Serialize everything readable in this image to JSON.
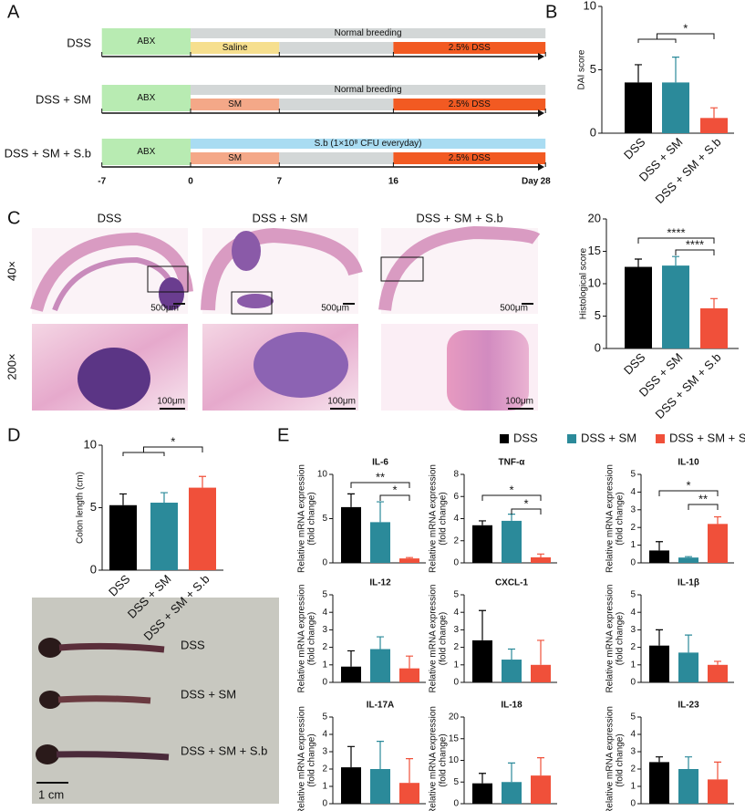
{
  "panel_labels": [
    "A",
    "B",
    "C",
    "D",
    "E"
  ],
  "timeline": {
    "ticks": [
      -7,
      0,
      7,
      16,
      28
    ],
    "unit": "Day",
    "rows": [
      {
        "label": "DSS",
        "segments": [
          {
            "text": "ABX",
            "start": -7,
            "end": 0,
            "lane": "both",
            "color": "#b8ebb2"
          },
          {
            "text": "Normal breeding",
            "start": 0,
            "end": 28,
            "lane": "top",
            "color": "#d3d7d7"
          },
          {
            "text": "Saline",
            "start": 0,
            "end": 7,
            "lane": "bottom",
            "color": "#f6df8e"
          },
          {
            "start": 7,
            "end": 16,
            "lane": "bottom",
            "color": "#d3d7d7"
          },
          {
            "text": "2.5% DSS",
            "start": 16,
            "end": 28,
            "lane": "bottom",
            "color": "#f25a22"
          }
        ]
      },
      {
        "label": "DSS + SM",
        "segments": [
          {
            "text": "ABX",
            "start": -7,
            "end": 0,
            "lane": "both",
            "color": "#b8ebb2"
          },
          {
            "text": "Normal breeding",
            "start": 0,
            "end": 28,
            "lane": "top",
            "color": "#d3d7d7"
          },
          {
            "text": "SM",
            "start": 0,
            "end": 7,
            "lane": "bottom",
            "color": "#f4a888"
          },
          {
            "start": 7,
            "end": 16,
            "lane": "bottom",
            "color": "#d3d7d7"
          },
          {
            "text": "2.5% DSS",
            "start": 16,
            "end": 28,
            "lane": "bottom",
            "color": "#f25a22"
          }
        ]
      },
      {
        "label": "DSS + SM + S.b",
        "segments": [
          {
            "text": "ABX",
            "start": -7,
            "end": 0,
            "lane": "both",
            "color": "#b8ebb2"
          },
          {
            "text": "S.b (1×10⁸ CFU everyday)",
            "start": 0,
            "end": 28,
            "lane": "top",
            "color": "#a9dcf2"
          },
          {
            "text": "SM",
            "start": 0,
            "end": 7,
            "lane": "bottom",
            "color": "#f4a888"
          },
          {
            "start": 7,
            "end": 16,
            "lane": "bottom",
            "color": "#d3d7d7"
          },
          {
            "text": "2.5% DSS",
            "start": 16,
            "end": 28,
            "lane": "bottom",
            "color": "#f25a22"
          }
        ]
      }
    ]
  },
  "histology": {
    "columns": [
      "DSS",
      "DSS + SM",
      "DSS + SM + S.b"
    ],
    "rows": [
      "40×",
      "200×"
    ],
    "scale_bars": [
      "500μm",
      "100μm"
    ]
  },
  "colon_photo": {
    "labels": [
      "DSS",
      "DSS + SM",
      "DSS + SM + S.b"
    ],
    "scale_bar": "1 cm"
  },
  "legend": {
    "names": [
      "DSS",
      "DSS + SM",
      "DSS + SM + S.b"
    ],
    "colors": [
      "#000000",
      "#2b8a9a",
      "#f0503a"
    ]
  },
  "chart_data": [
    {
      "type": "bar",
      "ylabel": "DAI score",
      "categories": [
        "DSS",
        "DSS + SM",
        "DSS + SM + S.b"
      ],
      "values": [
        4.0,
        4.0,
        1.2
      ],
      "errors": [
        1.4,
        2.0,
        0.8
      ],
      "ylim": [
        0,
        10
      ],
      "yticks": [
        0,
        5,
        10
      ],
      "annotations": [
        "*"
      ]
    },
    {
      "type": "bar",
      "ylabel": "Histological score",
      "categories": [
        "DSS",
        "DSS + SM",
        "DSS + SM + S.b"
      ],
      "values": [
        12.6,
        12.8,
        6.2
      ],
      "errors": [
        1.2,
        1.4,
        1.5
      ],
      "ylim": [
        0,
        20
      ],
      "yticks": [
        0,
        5,
        10,
        15,
        20
      ],
      "annotations": [
        "****",
        "****"
      ]
    },
    {
      "type": "bar",
      "ylabel": "Colon length (cm)",
      "categories": [
        "DSS",
        "DSS + SM",
        "DSS + SM + S.b"
      ],
      "values": [
        5.2,
        5.4,
        6.6
      ],
      "errors": [
        0.9,
        0.8,
        0.9
      ],
      "ylim": [
        0,
        10
      ],
      "yticks": [
        0,
        5,
        10
      ],
      "annotations": [
        "*"
      ]
    },
    {
      "type": "bar",
      "title": "IL-6",
      "ylabel": [
        "Relative mRNA expression",
        "(fold change)"
      ],
      "values": [
        6.3,
        4.6,
        0.5
      ],
      "errors": [
        1.5,
        2.3,
        0.1
      ],
      "ylim": [
        0,
        10
      ],
      "yticks": [
        0,
        5,
        10
      ],
      "annotations": [
        "**",
        "*"
      ]
    },
    {
      "type": "bar",
      "title": "TNF-α",
      "ylabel": [
        "Relative mRNA expression",
        "(fold change)"
      ],
      "values": [
        3.4,
        3.8,
        0.5
      ],
      "errors": [
        0.4,
        0.6,
        0.3
      ],
      "ylim": [
        0,
        8
      ],
      "yticks": [
        0,
        2,
        4,
        6,
        8
      ],
      "annotations": [
        "*",
        "*"
      ]
    },
    {
      "type": "bar",
      "title": "IL-10",
      "ylabel": [
        "Relative mRNA expression",
        "(fold change)"
      ],
      "values": [
        0.7,
        0.3,
        2.2
      ],
      "errors": [
        0.5,
        0.05,
        0.4
      ],
      "ylim": [
        0,
        5
      ],
      "yticks": [
        0,
        1,
        2,
        3,
        4,
        5
      ],
      "annotations": [
        "*",
        "**"
      ]
    },
    {
      "type": "bar",
      "title": "IL-12",
      "ylabel": [
        "Relative mRNA expression",
        "(fold change)"
      ],
      "values": [
        0.9,
        1.9,
        0.8
      ],
      "errors": [
        0.9,
        0.7,
        0.7
      ],
      "ylim": [
        0,
        5
      ],
      "yticks": [
        0,
        1,
        2,
        3,
        4,
        5
      ]
    },
    {
      "type": "bar",
      "title": "CXCL-1",
      "ylabel": [
        "Relative mRNA expression",
        "(fold change)"
      ],
      "values": [
        2.4,
        1.3,
        1.0
      ],
      "errors": [
        1.7,
        0.6,
        1.4
      ],
      "ylim": [
        0,
        5
      ],
      "yticks": [
        0,
        1,
        2,
        3,
        4,
        5
      ]
    },
    {
      "type": "bar",
      "title": "IL-1β",
      "ylabel": [
        "Relative mRNA expression",
        "(fold change)"
      ],
      "values": [
        2.1,
        1.7,
        1.0
      ],
      "errors": [
        0.9,
        1.0,
        0.2
      ],
      "ylim": [
        0,
        5
      ],
      "yticks": [
        0,
        1,
        2,
        3,
        4,
        5
      ]
    },
    {
      "type": "bar",
      "title": "IL-17A",
      "ylabel": [
        "Relative mRNA expression",
        "(fold change)"
      ],
      "values": [
        2.1,
        2.0,
        1.2
      ],
      "errors": [
        1.2,
        1.6,
        1.4
      ],
      "ylim": [
        0,
        5
      ],
      "yticks": [
        0,
        1,
        2,
        3,
        4,
        5
      ]
    },
    {
      "type": "bar",
      "title": "IL-18",
      "ylabel": [
        "Relative mRNA expression",
        "(fold change)"
      ],
      "values": [
        4.7,
        5.0,
        6.5
      ],
      "errors": [
        2.3,
        4.4,
        4.1
      ],
      "ylim": [
        0,
        20
      ],
      "yticks": [
        0,
        5,
        10,
        15,
        20
      ]
    },
    {
      "type": "bar",
      "title": "IL-23",
      "ylabel": [
        "Relative mRNA expression",
        "(fold change)"
      ],
      "values": [
        2.4,
        2.0,
        1.4
      ],
      "errors": [
        0.3,
        0.7,
        1.0
      ],
      "ylim": [
        0,
        5
      ],
      "yticks": [
        0,
        1,
        2,
        3,
        4,
        5
      ]
    }
  ]
}
